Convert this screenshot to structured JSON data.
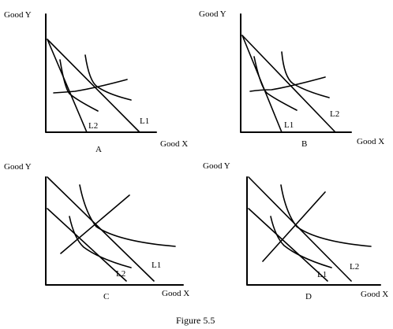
{
  "caption": "Figure 5.5",
  "colors": {
    "ink": "#000000",
    "background": "#ffffff"
  },
  "panels": [
    {
      "id": "A",
      "letter": "A",
      "y_axis_label": "Good Y",
      "x_axis_label": "Good X",
      "budget_lines": [
        {
          "label": "L2"
        },
        {
          "label": "L1"
        }
      ],
      "curves": [
        "indifference-curve-lower",
        "indifference-curve-higher",
        "income-consumption-curve"
      ]
    },
    {
      "id": "B",
      "letter": "B",
      "y_axis_label": "Good Y",
      "x_axis_label": "Good X",
      "budget_lines": [
        {
          "label": "L1"
        },
        {
          "label": "L2"
        }
      ],
      "curves": [
        "indifference-curve-lower",
        "indifference-curve-higher",
        "income-consumption-curve"
      ]
    },
    {
      "id": "C",
      "letter": "C",
      "y_axis_label": "Good Y",
      "x_axis_label": "Good X",
      "budget_lines": [
        {
          "label": "L2"
        },
        {
          "label": "L1"
        }
      ],
      "curves": [
        "indifference-curve-lower",
        "indifference-curve-higher",
        "income-consumption-curve"
      ]
    },
    {
      "id": "D",
      "letter": "D",
      "y_axis_label": "Good Y",
      "x_axis_label": "Good X",
      "budget_lines": [
        {
          "label": "L1"
        },
        {
          "label": "L2"
        }
      ],
      "curves": [
        "indifference-curve-lower",
        "indifference-curve-higher",
        "income-consumption-curve"
      ]
    }
  ]
}
